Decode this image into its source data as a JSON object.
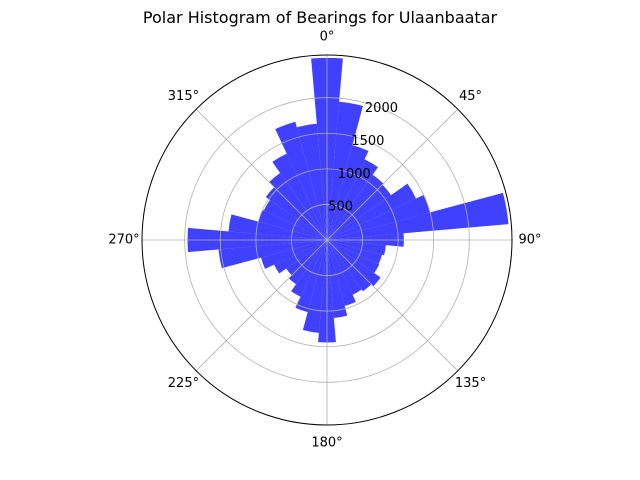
{
  "chart_data": {
    "type": "bar",
    "projection": "polar",
    "title": "Polar Histogram of Bearings for Ulaanbaatar",
    "theta_zero_location": "N",
    "theta_direction": "clockwise",
    "bin_width_deg": 10,
    "theta_tick_labels": [
      "0°",
      "45°",
      "90°",
      "135°",
      "180°",
      "225°",
      "270°",
      "315°"
    ],
    "theta_ticks_deg": [
      0,
      45,
      90,
      135,
      180,
      225,
      270,
      315
    ],
    "r_ticks": [
      500,
      1000,
      1500,
      2000
    ],
    "r_tick_labels": [
      "500",
      "1000",
      "1500",
      "2000"
    ],
    "rlim": [
      0,
      2600
    ],
    "bar_color": "#0000ff",
    "bar_alpha": 0.75,
    "grid": true,
    "bins": [
      {
        "theta": 0,
        "value": 2560
      },
      {
        "theta": 10,
        "value": 1950
      },
      {
        "theta": 20,
        "value": 1380
      },
      {
        "theta": 30,
        "value": 1250
      },
      {
        "theta": 40,
        "value": 1120
      },
      {
        "theta": 50,
        "value": 1100
      },
      {
        "theta": 60,
        "value": 1380
      },
      {
        "theta": 70,
        "value": 1500
      },
      {
        "theta": 80,
        "value": 2560
      },
      {
        "theta": 90,
        "value": 1080
      },
      {
        "theta": 100,
        "value": 830
      },
      {
        "theta": 110,
        "value": 800
      },
      {
        "theta": 120,
        "value": 810
      },
      {
        "theta": 130,
        "value": 920
      },
      {
        "theta": 140,
        "value": 880
      },
      {
        "theta": 150,
        "value": 850
      },
      {
        "theta": 160,
        "value": 960
      },
      {
        "theta": 170,
        "value": 1100
      },
      {
        "theta": 180,
        "value": 1440
      },
      {
        "theta": 190,
        "value": 1310
      },
      {
        "theta": 200,
        "value": 1050
      },
      {
        "theta": 210,
        "value": 880
      },
      {
        "theta": 220,
        "value": 760
      },
      {
        "theta": 230,
        "value": 700
      },
      {
        "theta": 240,
        "value": 820
      },
      {
        "theta": 250,
        "value": 960
      },
      {
        "theta": 260,
        "value": 1530
      },
      {
        "theta": 270,
        "value": 1960
      },
      {
        "theta": 280,
        "value": 1390
      },
      {
        "theta": 290,
        "value": 1000
      },
      {
        "theta": 300,
        "value": 980
      },
      {
        "theta": 310,
        "value": 1050
      },
      {
        "theta": 320,
        "value": 1150
      },
      {
        "theta": 330,
        "value": 1340
      },
      {
        "theta": 340,
        "value": 1720
      },
      {
        "theta": 350,
        "value": 1640
      }
    ]
  }
}
